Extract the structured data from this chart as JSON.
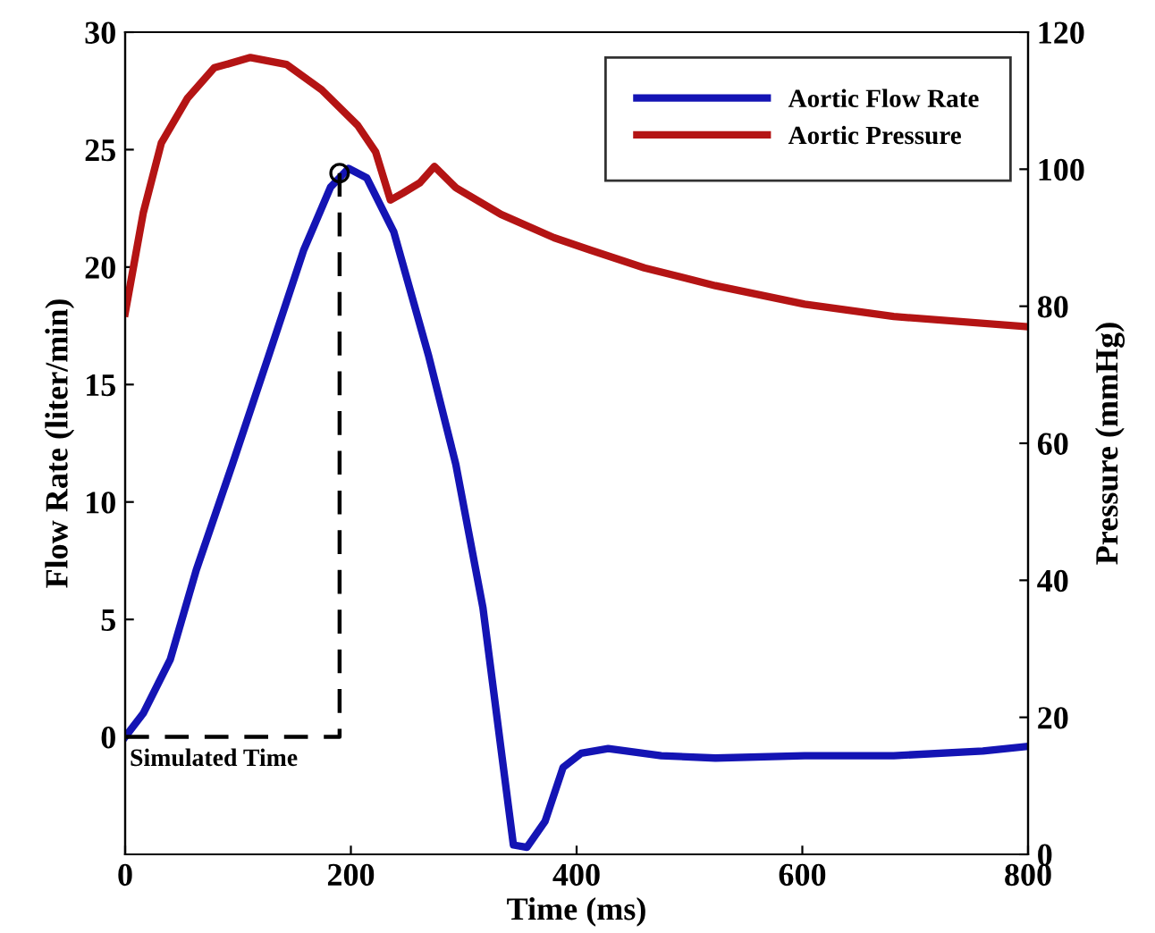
{
  "chart_data": {
    "type": "line",
    "xlabel": "Time (ms)",
    "ylabel": "Flow Rate (liter/min)",
    "y2label": "Pressure (mmHg)",
    "xlim": [
      0,
      800
    ],
    "xticks": [
      0,
      200,
      400,
      600,
      800
    ],
    "ylim": [
      -5,
      30
    ],
    "yticks": [
      0,
      5,
      10,
      15,
      20,
      25,
      30
    ],
    "y2lim": [
      0,
      120
    ],
    "y2ticks": [
      0,
      20,
      40,
      60,
      80,
      100,
      120
    ],
    "legend": "top right",
    "grid": false,
    "annotations": [
      "Simulated Time"
    ],
    "series": [
      {
        "name": "Aortic Flow Rate",
        "color": "#1414b4",
        "x": [
          0,
          16,
          40,
          63,
          95,
          127,
          158,
          182,
          198,
          214,
          238,
          269,
          293,
          317,
          333,
          344,
          356,
          372,
          388,
          404,
          428,
          475,
          523,
          602,
          681,
          760,
          800
        ],
        "values": [
          0,
          1,
          3.3,
          7.1,
          11.6,
          16.2,
          20.7,
          23.4,
          24.2,
          23.8,
          21.5,
          16.2,
          11.6,
          5.5,
          -0.5,
          -4.6,
          -4.7,
          -3.6,
          -1.3,
          -0.7,
          -0.5,
          -0.8,
          -0.9,
          -0.8,
          -0.8,
          -0.6,
          -0.4
        ]
      },
      {
        "name": "Aortic Pressure",
        "color": "#b41414",
        "axis": "y2",
        "x": [
          0,
          16,
          32,
          55,
          79,
          111,
          143,
          174,
          206,
          222,
          235,
          246,
          261,
          274,
          293,
          333,
          380,
          412,
          460,
          523,
          602,
          681,
          800
        ],
        "values": [
          79,
          93.6,
          103.8,
          110.3,
          114.8,
          116.3,
          115.3,
          111.6,
          106.4,
          102.5,
          95.5,
          96.5,
          98,
          100.4,
          97.3,
          93.4,
          90,
          88.2,
          85.6,
          83,
          80.3,
          78.5,
          77
        ]
      },
      {
        "color": "#000000",
        "line_style": "dashed",
        "x": [
          0,
          190,
          190
        ],
        "values": [
          0,
          0,
          24
        ]
      },
      {
        "type": "scatter",
        "marker": "circle",
        "color": "#000000",
        "x": [
          190
        ],
        "values": [
          24
        ]
      }
    ]
  }
}
